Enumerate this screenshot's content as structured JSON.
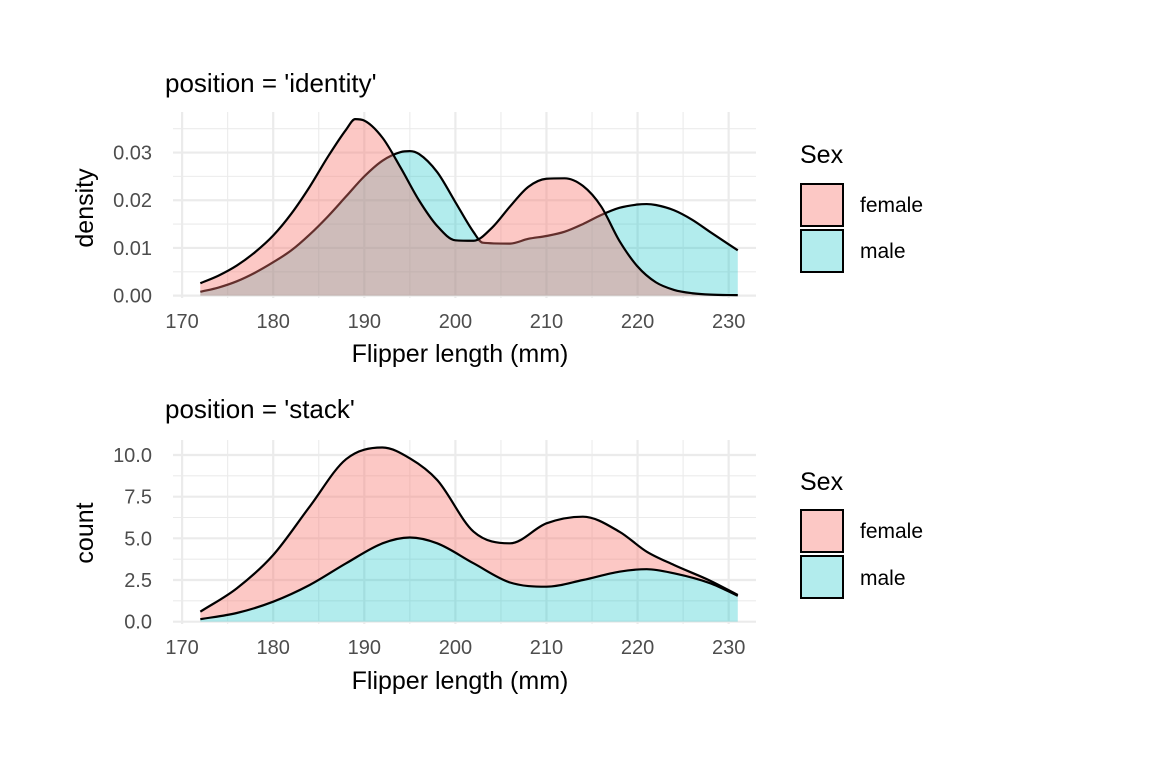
{
  "chart_data": [
    {
      "type": "area",
      "title": "position = 'identity'",
      "xlabel": "Flipper length (mm)",
      "ylabel": "density",
      "xlim": [
        169,
        233
      ],
      "ylim": [
        -0.0005,
        0.0385
      ],
      "x_ticks": [
        170,
        180,
        190,
        200,
        210,
        220,
        230
      ],
      "x_tick_labels": [
        "170",
        "180",
        "190",
        "200",
        "210",
        "220",
        "230"
      ],
      "y_ticks": [
        0,
        0.01,
        0.02,
        0.03
      ],
      "y_tick_labels": [
        "0.00",
        "0.01",
        "0.02",
        "0.03"
      ],
      "position": "identity",
      "grid": true,
      "legend": {
        "title": "Sex",
        "placement": "right"
      },
      "series": [
        {
          "name": "female",
          "color": "#F8766D",
          "x": [
            172,
            174,
            176,
            178,
            180,
            182,
            184,
            186,
            188,
            189,
            190,
            192,
            194,
            196,
            198,
            200,
            202,
            204,
            206,
            208,
            210,
            212,
            214,
            216,
            218,
            220,
            222,
            224,
            226,
            228,
            231
          ],
          "y": [
            0.0026,
            0.0042,
            0.0063,
            0.0091,
            0.0126,
            0.0172,
            0.0228,
            0.0291,
            0.0348,
            0.037,
            0.0367,
            0.0331,
            0.0268,
            0.02,
            0.0146,
            0.0116,
            0.0115,
            0.0142,
            0.0187,
            0.0228,
            0.0245,
            0.0246,
            0.023,
            0.0187,
            0.0115,
            0.0061,
            0.0028,
            0.0012,
            0.0005,
            0.0002,
            0.0001
          ]
        },
        {
          "name": "male",
          "color": "#00BFC4",
          "x": [
            172,
            174,
            176,
            178,
            180,
            182,
            184,
            186,
            188,
            190,
            192,
            194,
            195,
            196,
            198,
            200,
            202,
            203,
            206,
            208,
            210,
            212,
            214,
            216,
            218,
            220,
            221,
            222,
            224,
            226,
            228,
            231
          ],
          "y": [
            0.0008,
            0.0017,
            0.003,
            0.0048,
            0.007,
            0.0095,
            0.0128,
            0.0166,
            0.0208,
            0.025,
            0.0283,
            0.0301,
            0.0303,
            0.0297,
            0.0259,
            0.0196,
            0.0133,
            0.0111,
            0.0109,
            0.0119,
            0.0125,
            0.0134,
            0.015,
            0.0169,
            0.0184,
            0.0191,
            0.0192,
            0.019,
            0.0179,
            0.0159,
            0.0133,
            0.0095
          ]
        }
      ]
    },
    {
      "type": "area",
      "title": "position = 'stack'",
      "xlabel": "Flipper length (mm)",
      "ylabel": "count",
      "xlim": [
        169,
        233
      ],
      "ylim": [
        -0.14,
        10.9
      ],
      "x_ticks": [
        170,
        180,
        190,
        200,
        210,
        220,
        230
      ],
      "x_tick_labels": [
        "170",
        "180",
        "190",
        "200",
        "210",
        "220",
        "230"
      ],
      "y_ticks": [
        0,
        2.5,
        5,
        7.5,
        10
      ],
      "y_tick_labels": [
        "0.0",
        "2.5",
        "5.0",
        "7.5",
        "10.0"
      ],
      "position": "stack",
      "grid": true,
      "legend": {
        "title": "Sex",
        "placement": "right"
      },
      "series": [
        {
          "name": "male",
          "color": "#00BFC4",
          "x": [
            172,
            176,
            180,
            184,
            188,
            192,
            195,
            198,
            202,
            206,
            210,
            214,
            218,
            221,
            224,
            228,
            231
          ],
          "y": [
            0.15,
            0.52,
            1.2,
            2.2,
            3.5,
            4.7,
            5.05,
            4.7,
            3.5,
            2.35,
            2.1,
            2.5,
            3.0,
            3.15,
            2.9,
            2.3,
            1.55
          ]
        },
        {
          "name": "female",
          "color": "#F8766D",
          "x": [
            172,
            176,
            180,
            184,
            188,
            192,
            195,
            198,
            202,
            206,
            210,
            214,
            218,
            221,
            224,
            228,
            231
          ],
          "y": [
            0.45,
            1.48,
            2.8,
            4.7,
            6.25,
            5.75,
            4.75,
            3.8,
            1.9,
            2.35,
            3.8,
            3.8,
            2.4,
            1.05,
            0.5,
            0.15,
            0.05
          ]
        }
      ]
    }
  ],
  "panels": [
    {
      "title": "position = 'identity'",
      "xlabel": "Flipper length (mm)",
      "ylabel": "density",
      "legend_title": "Sex",
      "legend_items": [
        {
          "label": "female",
          "color": "#F8766D"
        },
        {
          "label": "male",
          "color": "#00BFC4"
        }
      ]
    },
    {
      "title": "position = 'stack'",
      "xlabel": "Flipper length (mm)",
      "ylabel": "count",
      "legend_title": "Sex",
      "legend_items": [
        {
          "label": "female",
          "color": "#F8766D"
        },
        {
          "label": "male",
          "color": "#00BFC4"
        }
      ]
    }
  ]
}
